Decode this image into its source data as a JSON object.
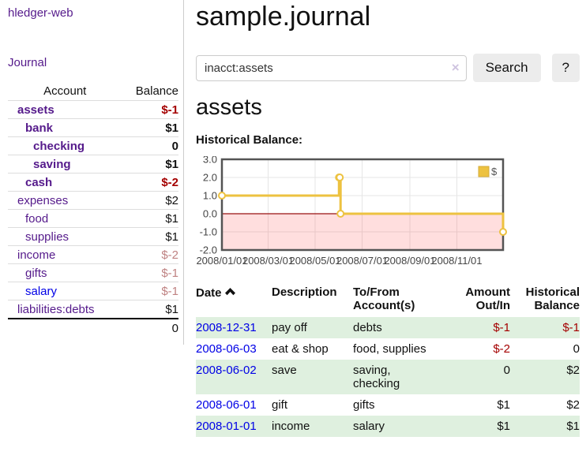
{
  "colors": {
    "link_purple": "#551a8b",
    "link_blue": "#0000e6",
    "negative_strong": "#a40000",
    "negative_muted": "#bf8282",
    "row_stripe_green": "#dff0df",
    "chart_line_yellow": "#edc240"
  },
  "sidebar": {
    "app_title": "hledger-web",
    "nav": {
      "journal": "Journal"
    },
    "accounts_table": {
      "headers": {
        "account": "Account",
        "balance": "Balance"
      },
      "rows": [
        {
          "name": "assets",
          "depth": 0,
          "bold": true,
          "link_color": "purple",
          "balance": "$-1",
          "balance_style": "neg"
        },
        {
          "name": "bank",
          "depth": 1,
          "bold": true,
          "link_color": "purple",
          "balance": "$1",
          "balance_style": "pos"
        },
        {
          "name": "checking",
          "depth": 2,
          "bold": true,
          "link_color": "purple",
          "balance": "0",
          "balance_style": "pos"
        },
        {
          "name": "saving",
          "depth": 2,
          "bold": true,
          "link_color": "purple",
          "balance": "$1",
          "balance_style": "pos"
        },
        {
          "name": "cash",
          "depth": 1,
          "bold": true,
          "link_color": "purple",
          "balance": "$-2",
          "balance_style": "neg"
        },
        {
          "name": "expenses",
          "depth": 0,
          "bold": false,
          "link_color": "purple",
          "balance": "$2",
          "balance_style": "pos"
        },
        {
          "name": "food",
          "depth": 1,
          "bold": false,
          "link_color": "purple",
          "balance": "$1",
          "balance_style": "pos"
        },
        {
          "name": "supplies",
          "depth": 1,
          "bold": false,
          "link_color": "purple",
          "balance": "$1",
          "balance_style": "pos"
        },
        {
          "name": "income",
          "depth": 0,
          "bold": false,
          "link_color": "purple",
          "balance": "$-2",
          "balance_style": "neg-muted"
        },
        {
          "name": "gifts",
          "depth": 1,
          "bold": false,
          "link_color": "purple",
          "balance": "$-1",
          "balance_style": "neg-muted"
        },
        {
          "name": "salary",
          "depth": 1,
          "bold": false,
          "link_color": "blue",
          "balance": "$-1",
          "balance_style": "neg-muted"
        },
        {
          "name": "liabilities:debts",
          "depth": 0,
          "bold": false,
          "link_color": "purple",
          "balance": "$1",
          "balance_style": "pos"
        }
      ],
      "total": "0"
    }
  },
  "header": {
    "title": "sample.journal"
  },
  "search": {
    "value": "inacct:assets",
    "clear_icon": "×",
    "button_label": "Search",
    "help_button_label": "?"
  },
  "account_page": {
    "heading": "assets",
    "chart_label": "Historical Balance:"
  },
  "chart_data": {
    "type": "line",
    "style": "steps",
    "title": "Historical Balance",
    "x_domain": [
      "2008-01-01",
      "2008-12-31"
    ],
    "ylim": [
      -2,
      3
    ],
    "grid": true,
    "legend": {
      "position": "top-right",
      "entries": [
        {
          "label": "$",
          "color": "#edc240"
        }
      ]
    },
    "series": [
      {
        "name": "$",
        "color": "#edc240",
        "points": [
          {
            "date": "2008-01-01",
            "value": 1
          },
          {
            "date": "2008-06-01",
            "value": 2
          },
          {
            "date": "2008-06-02",
            "value": 2
          },
          {
            "date": "2008-06-03",
            "value": 0
          },
          {
            "date": "2008-12-31",
            "value": -1
          }
        ]
      }
    ],
    "yticks": [
      {
        "value": 3,
        "label": "3.0"
      },
      {
        "value": 2,
        "label": "2.0"
      },
      {
        "value": 1,
        "label": "1.0"
      },
      {
        "value": 0,
        "label": "0.0"
      },
      {
        "value": -1,
        "label": "-1.0"
      },
      {
        "value": -2,
        "label": "-2.0"
      }
    ],
    "xticks": [
      {
        "date": "2008-01-01",
        "label": "2008/01/01"
      },
      {
        "date": "2008-03-01",
        "label": "2008/03/01"
      },
      {
        "date": "2008-05-01",
        "label": "2008/05/01"
      },
      {
        "date": "2008-07-01",
        "label": "2008/07/01"
      },
      {
        "date": "2008-09-01",
        "label": "2008/09/01"
      },
      {
        "date": "2008-11-01",
        "label": "2008/11/01"
      }
    ],
    "negative_region_fill": "rgba(255,0,0,0.13)",
    "zero_line_color": "#991111"
  },
  "register_table": {
    "headers": {
      "date": "Date",
      "description": "Description",
      "accounts": "To/From Account(s)",
      "amount": "Amount Out/In",
      "balance": "Historical Balance"
    },
    "sort": {
      "column": "date",
      "direction": "ascending"
    },
    "rows": [
      {
        "date": "2008-12-31",
        "description": "pay off",
        "accounts": "debts",
        "amount": "$-1",
        "amount_neg": true,
        "balance": "$-1",
        "balance_neg": true
      },
      {
        "date": "2008-06-03",
        "description": "eat & shop",
        "accounts": "food, supplies",
        "amount": "$-2",
        "amount_neg": true,
        "balance": "0",
        "balance_neg": false
      },
      {
        "date": "2008-06-02",
        "description": "save",
        "accounts": "saving,\nchecking",
        "amount": "0",
        "amount_neg": false,
        "balance": "$2",
        "balance_neg": false
      },
      {
        "date": "2008-06-01",
        "description": "gift",
        "accounts": "gifts",
        "amount": "$1",
        "amount_neg": false,
        "balance": "$2",
        "balance_neg": false
      },
      {
        "date": "2008-01-01",
        "description": "income",
        "accounts": "salary",
        "amount": "$1",
        "amount_neg": false,
        "balance": "$1",
        "balance_neg": false
      }
    ]
  }
}
